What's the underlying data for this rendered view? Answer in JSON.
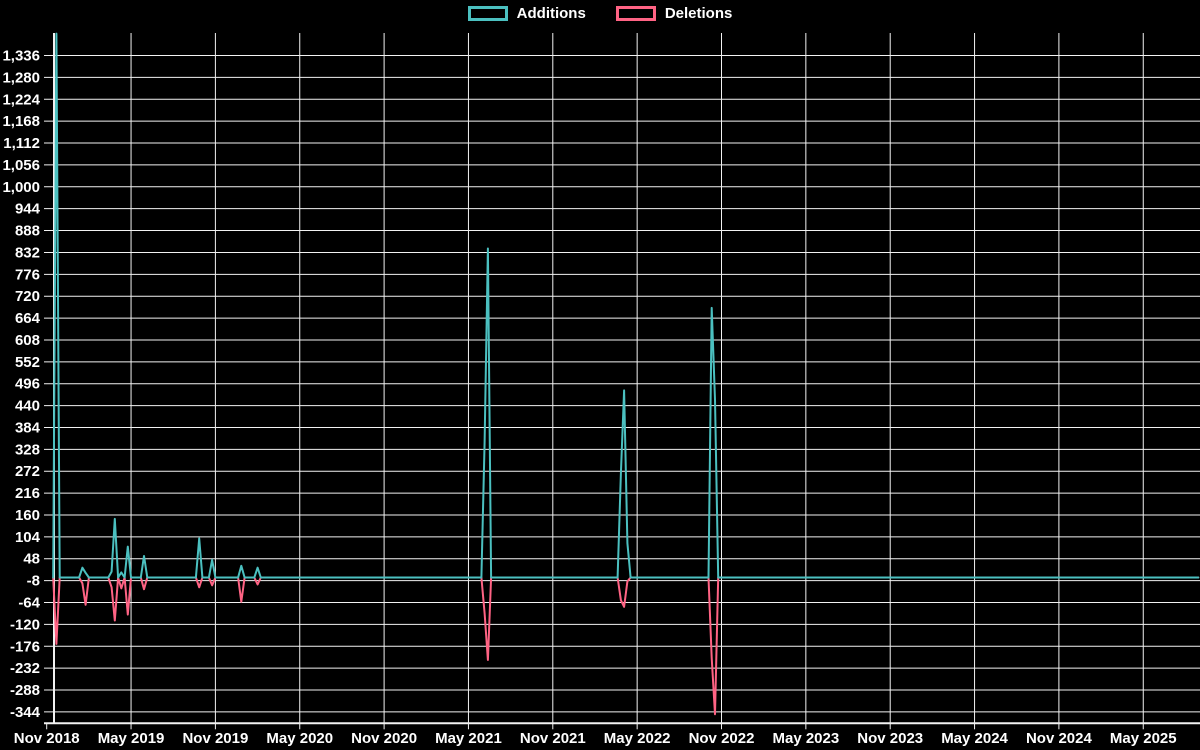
{
  "page": {
    "background": "#000000",
    "grid_color": "#f2f2f2",
    "text_color": "#ffffff"
  },
  "legend": {
    "items": [
      {
        "label": "Additions",
        "color": "#4bc0c0"
      },
      {
        "label": "Deletions",
        "color": "#ff6384"
      }
    ]
  },
  "chart_data": {
    "type": "line",
    "title": "",
    "xlabel": "",
    "ylabel": "",
    "legend_position": "top",
    "grid": true,
    "background": "#000000",
    "x_tick_labels": [
      "Nov 2018",
      "May 2019",
      "Nov 2019",
      "May 2020",
      "Nov 2020",
      "May 2021",
      "Nov 2021",
      "May 2022",
      "Nov 2022",
      "May 2023",
      "Nov 2023",
      "May 2024",
      "Nov 2024",
      "May 2025"
    ],
    "y_ticks": [
      1336,
      1280,
      1224,
      1168,
      1112,
      1056,
      1000,
      944,
      888,
      832,
      776,
      720,
      664,
      608,
      552,
      496,
      440,
      384,
      328,
      272,
      216,
      160,
      104,
      48,
      -8,
      -64,
      -120,
      -176,
      -232,
      -288,
      -344
    ],
    "ylim": [
      -373,
      1393
    ],
    "x_unit": "week",
    "weeks_start_label": "Nov 2018",
    "weeks_total": 356,
    "baseline_value": 0,
    "series": [
      {
        "name": "Additions",
        "color": "#4bc0c0",
        "sign": "positive"
      },
      {
        "name": "Deletions",
        "color": "#ff6384",
        "sign": "negative"
      }
    ],
    "weekly_events": [
      {
        "week": 3,
        "additions": 1392,
        "deletions": -170
      },
      {
        "week": 11,
        "additions": 25,
        "deletions": -15
      },
      {
        "week": 12,
        "additions": 12,
        "deletions": -70
      },
      {
        "week": 20,
        "additions": 15,
        "deletions": -25
      },
      {
        "week": 21,
        "additions": 150,
        "deletions": -110
      },
      {
        "week": 23,
        "additions": 13,
        "deletions": -28
      },
      {
        "week": 25,
        "additions": 79,
        "deletions": -95
      },
      {
        "week": 30,
        "additions": 55,
        "deletions": -30
      },
      {
        "week": 47,
        "additions": 100,
        "deletions": -25
      },
      {
        "week": 51,
        "additions": 45,
        "deletions": -20
      },
      {
        "week": 60,
        "additions": 30,
        "deletions": -62
      },
      {
        "week": 65,
        "additions": 25,
        "deletions": -18
      },
      {
        "week": 135,
        "additions": 346,
        "deletions": -91
      },
      {
        "week": 136,
        "additions": 842,
        "deletions": -211
      },
      {
        "week": 177,
        "additions": 267,
        "deletions": -58
      },
      {
        "week": 178,
        "additions": 479,
        "deletions": -75
      },
      {
        "week": 179,
        "additions": 88,
        "deletions": -10
      },
      {
        "week": 205,
        "additions": 690,
        "deletions": -206
      },
      {
        "week": 206,
        "additions": 455,
        "deletions": -350
      }
    ]
  }
}
